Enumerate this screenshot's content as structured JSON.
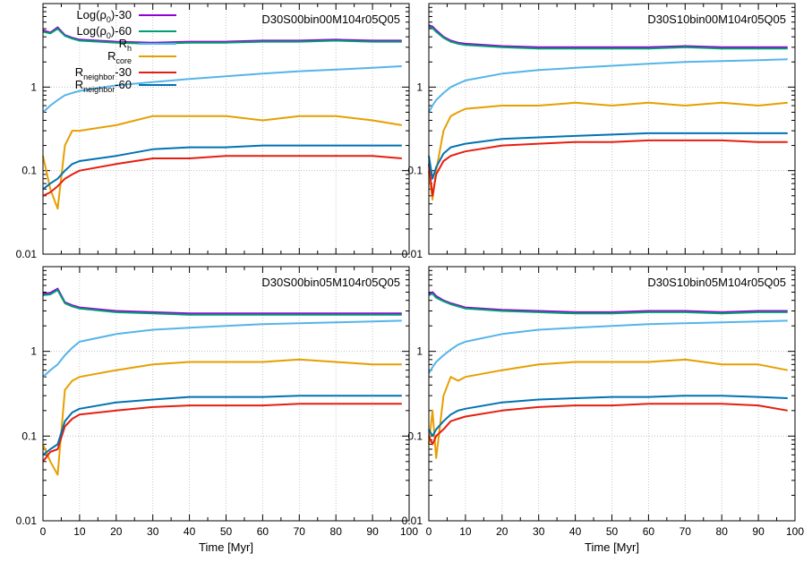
{
  "chart_data": [
    {
      "type": "line",
      "title": "D30S00bin00M104r05Q05",
      "xlabel": "",
      "xlim": [
        0,
        100
      ],
      "ylim": [
        0.01,
        10
      ],
      "yscale": "log",
      "grid": true,
      "legend": "top-left",
      "x": [
        0,
        2,
        4,
        6,
        8,
        10,
        20,
        30,
        40,
        50,
        60,
        70,
        80,
        90,
        98
      ],
      "series": [
        {
          "name": "Log(ρ0)-30",
          "color": "#9400d3",
          "values": [
            4.8,
            4.5,
            5.2,
            4.2,
            3.9,
            3.7,
            3.5,
            3.4,
            3.5,
            3.5,
            3.6,
            3.6,
            3.7,
            3.6,
            3.6
          ]
        },
        {
          "name": "Log(ρ0)-60",
          "color": "#009e73",
          "values": [
            4.6,
            4.4,
            5.0,
            4.1,
            3.8,
            3.6,
            3.4,
            3.3,
            3.4,
            3.4,
            3.5,
            3.5,
            3.6,
            3.5,
            3.5
          ]
        },
        {
          "name": "Rh",
          "color": "#56b4e9",
          "values": [
            0.5,
            0.6,
            0.7,
            0.8,
            0.85,
            0.9,
            1.05,
            1.15,
            1.25,
            1.35,
            1.45,
            1.55,
            1.62,
            1.7,
            1.78
          ]
        },
        {
          "name": "Rcore",
          "color": "#e69f00",
          "values": [
            0.15,
            0.06,
            0.035,
            0.2,
            0.3,
            0.3,
            0.35,
            0.45,
            0.45,
            0.45,
            0.4,
            0.45,
            0.45,
            0.4,
            0.35
          ]
        },
        {
          "name": "Rneighbor-30",
          "color": "#e51e10",
          "values": [
            0.05,
            0.055,
            0.065,
            0.08,
            0.09,
            0.1,
            0.12,
            0.14,
            0.14,
            0.15,
            0.15,
            0.15,
            0.15,
            0.15,
            0.14
          ]
        },
        {
          "name": "Rneighbor-60",
          "color": "#0072b2",
          "values": [
            0.06,
            0.07,
            0.08,
            0.1,
            0.12,
            0.13,
            0.15,
            0.18,
            0.19,
            0.19,
            0.2,
            0.2,
            0.2,
            0.2,
            0.2
          ]
        }
      ]
    },
    {
      "type": "line",
      "title": "D30S10bin00M104r05Q05",
      "xlabel": "",
      "xlim": [
        0,
        100
      ],
      "ylim": [
        0.01,
        10
      ],
      "yscale": "log",
      "grid": true,
      "x": [
        0,
        1,
        2,
        4,
        6,
        8,
        10,
        20,
        30,
        40,
        50,
        60,
        70,
        80,
        90,
        98
      ],
      "series": [
        {
          "name": "Log(ρ0)-30",
          "color": "#9400d3",
          "values": [
            5.5,
            5.3,
            4.8,
            4.0,
            3.6,
            3.4,
            3.3,
            3.1,
            3.0,
            3.0,
            3.0,
            3.0,
            3.1,
            3.0,
            3.0,
            3.0
          ]
        },
        {
          "name": "Log(ρ0)-60",
          "color": "#009e73",
          "values": [
            5.3,
            5.1,
            4.6,
            3.9,
            3.5,
            3.3,
            3.2,
            3.0,
            2.9,
            2.9,
            2.9,
            2.9,
            3.0,
            2.9,
            2.9,
            2.9
          ]
        },
        {
          "name": "Rh",
          "color": "#56b4e9",
          "values": [
            0.5,
            0.6,
            0.7,
            0.85,
            1.0,
            1.1,
            1.2,
            1.45,
            1.6,
            1.7,
            1.8,
            1.9,
            2.0,
            2.05,
            2.1,
            2.15
          ]
        },
        {
          "name": "Rcore",
          "color": "#e69f00",
          "values": [
            0.1,
            0.045,
            0.1,
            0.3,
            0.45,
            0.5,
            0.55,
            0.6,
            0.6,
            0.65,
            0.6,
            0.65,
            0.6,
            0.65,
            0.6,
            0.65
          ]
        },
        {
          "name": "Rneighbor-30",
          "color": "#e51e10",
          "values": [
            0.12,
            0.05,
            0.09,
            0.13,
            0.15,
            0.16,
            0.17,
            0.2,
            0.21,
            0.22,
            0.22,
            0.23,
            0.23,
            0.23,
            0.22,
            0.22
          ]
        },
        {
          "name": "Rneighbor-60",
          "color": "#0072b2",
          "values": [
            0.15,
            0.08,
            0.11,
            0.16,
            0.19,
            0.2,
            0.21,
            0.24,
            0.25,
            0.26,
            0.27,
            0.28,
            0.28,
            0.28,
            0.28,
            0.28
          ]
        }
      ]
    },
    {
      "type": "line",
      "title": "D30S00bin05M104r05Q05",
      "xlabel": "Time [Myr]",
      "xlim": [
        0,
        100
      ],
      "ylim": [
        0.01,
        10
      ],
      "yscale": "log",
      "grid": true,
      "x": [
        0,
        2,
        4,
        6,
        8,
        10,
        20,
        30,
        40,
        50,
        60,
        70,
        80,
        90,
        98
      ],
      "series": [
        {
          "name": "Log(ρ0)-30",
          "color": "#9400d3",
          "values": [
            4.8,
            4.9,
            5.5,
            3.8,
            3.5,
            3.3,
            3.0,
            2.9,
            2.8,
            2.8,
            2.8,
            2.8,
            2.8,
            2.8,
            2.8
          ]
        },
        {
          "name": "Log(ρ0)-60",
          "color": "#009e73",
          "values": [
            4.6,
            4.7,
            5.3,
            3.7,
            3.4,
            3.2,
            2.9,
            2.8,
            2.7,
            2.7,
            2.7,
            2.7,
            2.7,
            2.7,
            2.7
          ]
        },
        {
          "name": "Rh",
          "color": "#56b4e9",
          "values": [
            0.5,
            0.6,
            0.7,
            0.9,
            1.1,
            1.3,
            1.6,
            1.8,
            1.9,
            2.0,
            2.1,
            2.15,
            2.2,
            2.25,
            2.3
          ]
        },
        {
          "name": "Rcore",
          "color": "#e69f00",
          "values": [
            0.08,
            0.05,
            0.035,
            0.35,
            0.45,
            0.5,
            0.6,
            0.7,
            0.75,
            0.75,
            0.75,
            0.8,
            0.75,
            0.7,
            0.7
          ]
        },
        {
          "name": "Rneighbor-30",
          "color": "#e51e10",
          "values": [
            0.05,
            0.065,
            0.07,
            0.13,
            0.16,
            0.18,
            0.2,
            0.22,
            0.23,
            0.23,
            0.23,
            0.24,
            0.24,
            0.24,
            0.24
          ]
        },
        {
          "name": "Rneighbor-60",
          "color": "#0072b2",
          "values": [
            0.06,
            0.07,
            0.08,
            0.15,
            0.19,
            0.21,
            0.25,
            0.27,
            0.29,
            0.29,
            0.29,
            0.3,
            0.3,
            0.3,
            0.3
          ]
        }
      ]
    },
    {
      "type": "line",
      "title": "D30S10bin05M104r05Q05",
      "xlabel": "Time [Myr]",
      "xlim": [
        0,
        100
      ],
      "ylim": [
        0.01,
        10
      ],
      "yscale": "log",
      "grid": true,
      "x": [
        0,
        1,
        2,
        4,
        6,
        8,
        10,
        20,
        30,
        40,
        50,
        60,
        70,
        80,
        90,
        98
      ],
      "series": [
        {
          "name": "Log(ρ0)-30",
          "color": "#9400d3",
          "values": [
            4.8,
            5.0,
            4.5,
            4.0,
            3.7,
            3.5,
            3.3,
            3.1,
            3.0,
            2.9,
            2.9,
            3.0,
            3.0,
            2.9,
            3.0,
            3.0
          ]
        },
        {
          "name": "Log(ρ0)-60",
          "color": "#009e73",
          "values": [
            4.6,
            4.8,
            4.3,
            3.9,
            3.6,
            3.4,
            3.2,
            3.0,
            2.9,
            2.8,
            2.8,
            2.9,
            2.9,
            2.8,
            2.9,
            2.9
          ]
        },
        {
          "name": "Rh",
          "color": "#56b4e9",
          "values": [
            0.55,
            0.65,
            0.75,
            0.9,
            1.05,
            1.2,
            1.3,
            1.6,
            1.8,
            1.9,
            2.0,
            2.1,
            2.15,
            2.2,
            2.25,
            2.3
          ]
        },
        {
          "name": "Rcore",
          "color": "#e69f00",
          "values": [
            0.08,
            0.2,
            0.055,
            0.3,
            0.5,
            0.45,
            0.5,
            0.6,
            0.7,
            0.75,
            0.75,
            0.75,
            0.8,
            0.7,
            0.7,
            0.6
          ]
        },
        {
          "name": "Rneighbor-30",
          "color": "#e51e10",
          "values": [
            0.1,
            0.08,
            0.1,
            0.12,
            0.15,
            0.16,
            0.17,
            0.2,
            0.22,
            0.23,
            0.23,
            0.24,
            0.24,
            0.24,
            0.23,
            0.2
          ]
        },
        {
          "name": "Rneighbor-60",
          "color": "#0072b2",
          "values": [
            0.12,
            0.1,
            0.12,
            0.15,
            0.18,
            0.2,
            0.21,
            0.25,
            0.27,
            0.28,
            0.29,
            0.29,
            0.3,
            0.3,
            0.29,
            0.28
          ]
        }
      ]
    }
  ],
  "legend": {
    "entries": [
      {
        "main": "Log(ρ",
        "sub": "0",
        "post": ")-30",
        "color": "#9400d3"
      },
      {
        "main": "Log(ρ",
        "sub": "0",
        "post": ")-60",
        "color": "#009e73"
      },
      {
        "main": "R",
        "sub": "h",
        "post": "",
        "color": "#56b4e9"
      },
      {
        "main": "R",
        "sub": "core",
        "post": "",
        "color": "#e69f00"
      },
      {
        "main": "R",
        "sub": "neighbor",
        "post": "-30",
        "color": "#e51e10"
      },
      {
        "main": "R",
        "sub": "neighbor",
        "post": "-60",
        "color": "#0072b2"
      }
    ]
  },
  "axes": {
    "x_ticks": [
      "0",
      "10",
      "20",
      "30",
      "40",
      "50",
      "60",
      "70",
      "80",
      "90",
      "100"
    ],
    "y_ticks": [
      "0.01",
      "0.1",
      "1"
    ]
  }
}
